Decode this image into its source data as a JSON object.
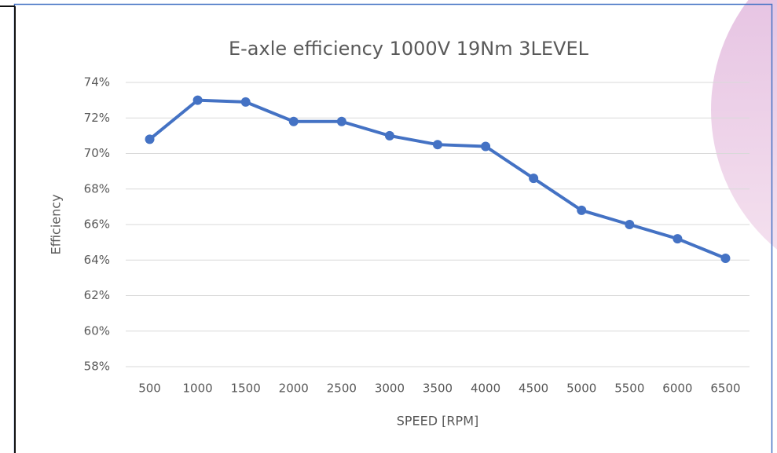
{
  "chart_data": {
    "type": "line",
    "title": "E-axle efficiency 1000V 19Nm 3LEVEL",
    "x_label": "SPEED [RPM]",
    "y_label": "Efficiency",
    "categories": [
      "500",
      "1000",
      "1500",
      "2000",
      "2500",
      "3000",
      "3500",
      "4000",
      "4500",
      "5000",
      "5500",
      "6000",
      "6500"
    ],
    "series": [
      {
        "name": "Efficiency",
        "color": "#4472c4",
        "values": [
          70.8,
          73.0,
          72.9,
          71.8,
          71.8,
          71.0,
          70.5,
          70.4,
          68.6,
          66.8,
          66.0,
          65.2,
          64.1
        ]
      }
    ],
    "ylim": [
      58,
      74
    ],
    "yticks": [
      {
        "value": 58,
        "label": "58%"
      },
      {
        "value": 60,
        "label": "60%"
      },
      {
        "value": 62,
        "label": "62%"
      },
      {
        "value": 64,
        "label": "64%"
      },
      {
        "value": 66,
        "label": "66%"
      },
      {
        "value": 68,
        "label": "68%"
      },
      {
        "value": 70,
        "label": "70%"
      },
      {
        "value": 72,
        "label": "72%"
      },
      {
        "value": 74,
        "label": "74%"
      }
    ],
    "grid": true,
    "markers": true
  }
}
